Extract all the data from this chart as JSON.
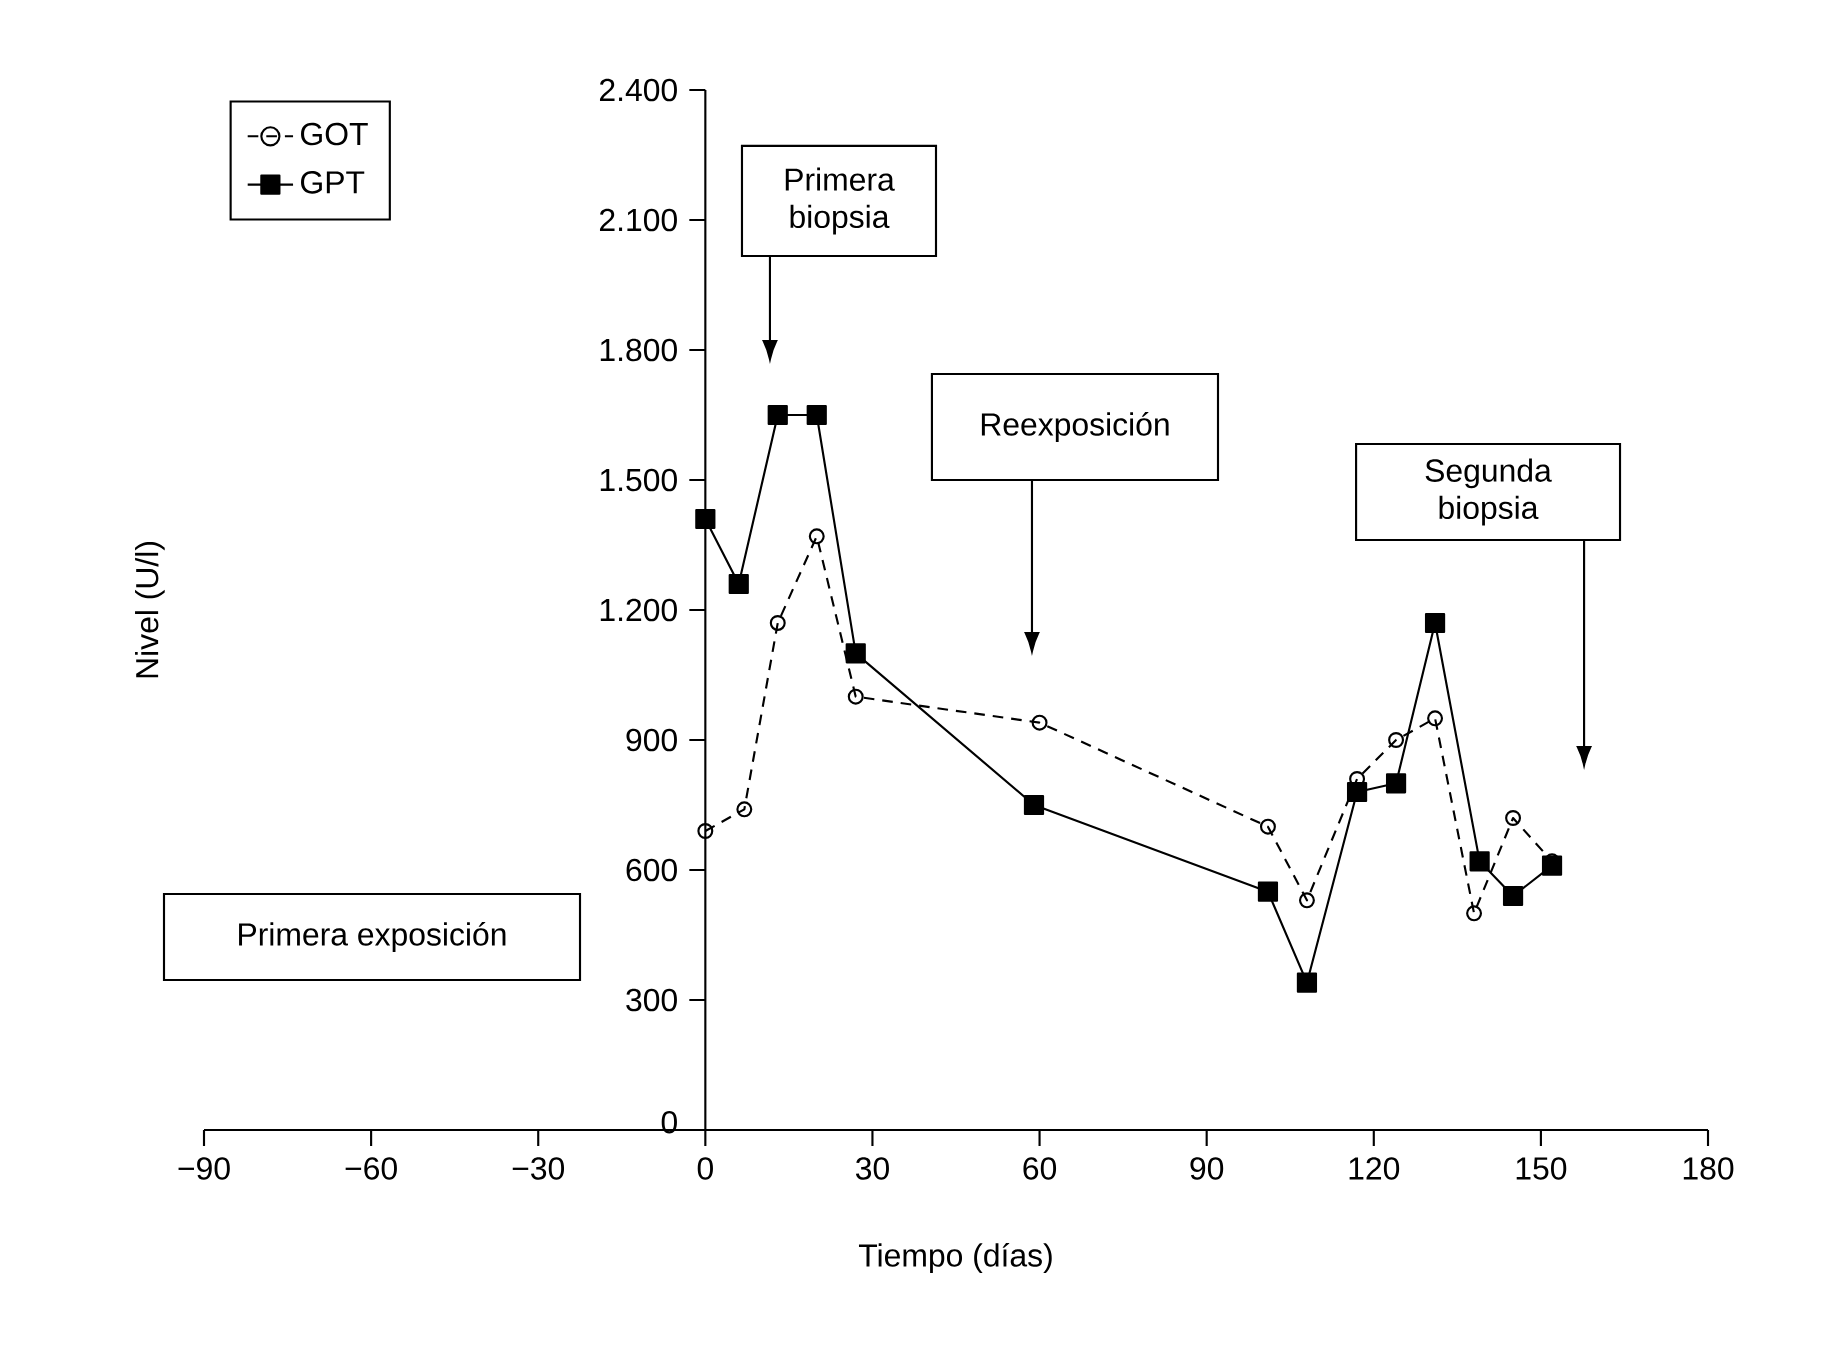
{
  "chart_data": {
    "type": "line",
    "xlabel": "Tiempo (días)",
    "ylabel": "Nivel (U/l)",
    "xlim": [
      -90,
      180
    ],
    "ylim": [
      0,
      2400
    ],
    "xticks": [
      {
        "value": -90,
        "label": "−90"
      },
      {
        "value": -60,
        "label": "−60"
      },
      {
        "value": -30,
        "label": "−30"
      },
      0,
      30,
      60,
      90,
      120,
      150,
      180
    ],
    "yticks": [
      0,
      300,
      600,
      900,
      {
        "value": 1200,
        "label": "1.200"
      },
      {
        "value": 1500,
        "label": "1.500"
      },
      {
        "value": 1800,
        "label": "1.800"
      },
      {
        "value": 2100,
        "label": "2.100"
      },
      {
        "value": 2400,
        "label": "2.400"
      }
    ],
    "legend": "top left",
    "grid": false,
    "series": [
      {
        "name": "GOT",
        "color": "#000000",
        "marker": "circle",
        "line_style": "dashed",
        "x": [
          0,
          7,
          13,
          20,
          27,
          60,
          101,
          108,
          117,
          124,
          131,
          138,
          145,
          152
        ],
        "values": [
          690,
          740,
          1170,
          1370,
          1000,
          940,
          700,
          530,
          810,
          900,
          950,
          500,
          720,
          620
        ]
      },
      {
        "name": "GPT",
        "color": "#000000",
        "marker": "square",
        "line_style": "solid",
        "x": [
          0,
          6,
          13,
          20,
          27,
          59,
          101,
          108,
          117,
          124,
          131,
          139,
          145,
          152
        ],
        "values": [
          1410,
          1260,
          1650,
          1650,
          1100,
          750,
          550,
          340,
          780,
          800,
          1170,
          620,
          540,
          610
        ]
      }
    ],
    "annotations": [
      "Primera exposición",
      "Primera biopsia",
      "Reexposición",
      "Segunda biopsia"
    ]
  }
}
